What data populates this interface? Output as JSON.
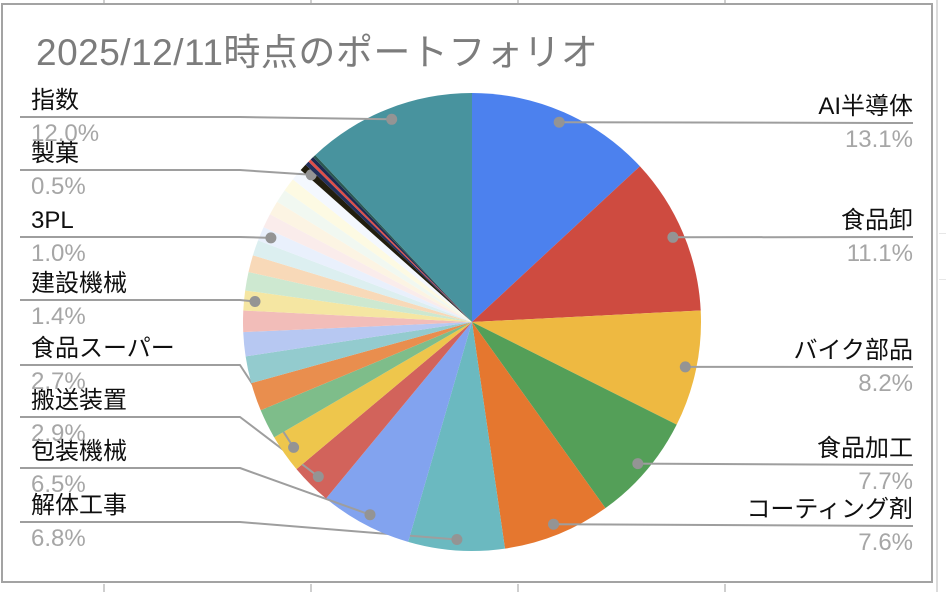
{
  "chart_data": {
    "type": "pie",
    "title": "2025/12/11時点のポートフォリオ",
    "legend_position": "none",
    "label_style": "callout-with-leader-lines",
    "accent_colors": {
      "leader_line": "#9e9e9e",
      "callout_dot": "#949494",
      "label_text": "#0f0f0f",
      "percent_text": "#a6a6a6",
      "title_text": "#7c7c7c",
      "frame_border": "#a3a3a3"
    },
    "slices": [
      {
        "label": "AI半導体",
        "value": 13.1,
        "pct": "13.1%",
        "color": "#4c81ee",
        "labeled": true
      },
      {
        "label": "食品卸",
        "value": 11.1,
        "pct": "11.1%",
        "color": "#ce4b40",
        "labeled": true
      },
      {
        "label": "バイク部品",
        "value": 8.2,
        "pct": "8.2%",
        "color": "#eeb941",
        "labeled": true
      },
      {
        "label": "食品加工",
        "value": 7.7,
        "pct": "7.7%",
        "color": "#549f58",
        "labeled": true
      },
      {
        "label": "コーティング剤",
        "value": 7.6,
        "pct": "7.6%",
        "color": "#e5772f",
        "labeled": true
      },
      {
        "label": "解体工事",
        "value": 6.8,
        "pct": "6.8%",
        "color": "#6bb9c0",
        "labeled": true
      },
      {
        "label": "包装機械",
        "value": 6.5,
        "pct": "6.5%",
        "color": "#82a3ef",
        "labeled": true
      },
      {
        "label": "搬送装置",
        "value": 2.9,
        "pct": "2.9%",
        "color": "#d2635b",
        "labeled": true
      },
      {
        "label": "食品スーパー",
        "value": 2.7,
        "pct": "2.7%",
        "color": "#eec64c",
        "labeled": true
      },
      {
        "label": "",
        "value": 2.1,
        "color": "#7ebd8a",
        "labeled": false
      },
      {
        "label": "",
        "value": 2.0,
        "color": "#e98e4e",
        "labeled": false
      },
      {
        "label": "",
        "value": 1.9,
        "color": "#93cbce",
        "labeled": false
      },
      {
        "label": "",
        "value": 1.7,
        "color": "#b7c8f2",
        "labeled": false
      },
      {
        "label": "",
        "value": 1.5,
        "color": "#f2bdb9",
        "labeled": false
      },
      {
        "label": "建設機械",
        "value": 1.4,
        "pct": "1.4%",
        "color": "#f5e6a2",
        "labeled": true
      },
      {
        "label": "",
        "value": 1.3,
        "color": "#cde8d0",
        "labeled": false
      },
      {
        "label": "",
        "value": 1.2,
        "color": "#f8d9b8",
        "labeled": false
      },
      {
        "label": "",
        "value": 1.1,
        "color": "#dceff0",
        "labeled": false
      },
      {
        "label": "3PL",
        "value": 1.0,
        "pct": "1.0%",
        "color": "#e9f0fc",
        "labeled": true
      },
      {
        "label": "",
        "value": 1.0,
        "color": "#faeceb",
        "labeled": false
      },
      {
        "label": "",
        "value": 1.0,
        "color": "#fcf4e3",
        "labeled": false
      },
      {
        "label": "",
        "value": 0.95,
        "color": "#f1f8f1",
        "labeled": false
      },
      {
        "label": "",
        "value": 0.95,
        "color": "#fdfae3",
        "labeled": false
      },
      {
        "label": "",
        "value": 0.85,
        "color": "#f4f8fe",
        "labeled": false
      },
      {
        "label": "製菓",
        "value": 0.5,
        "pct": "0.5%",
        "color": "#221e0e",
        "labeled": true
      },
      {
        "label": "",
        "value": 0.3,
        "color": "#222f5b",
        "labeled": false
      },
      {
        "label": "",
        "value": 0.2,
        "color": "#e04e48",
        "labeled": false
      },
      {
        "label": "",
        "value": 0.25,
        "color": "#1d2a52",
        "labeled": false
      },
      {
        "label": "",
        "value": 0.2,
        "color": "#2a5852",
        "labeled": false
      },
      {
        "label": "指数",
        "value": 12.0,
        "pct": "12.0%",
        "color": "#48939e",
        "labeled": true
      }
    ]
  }
}
